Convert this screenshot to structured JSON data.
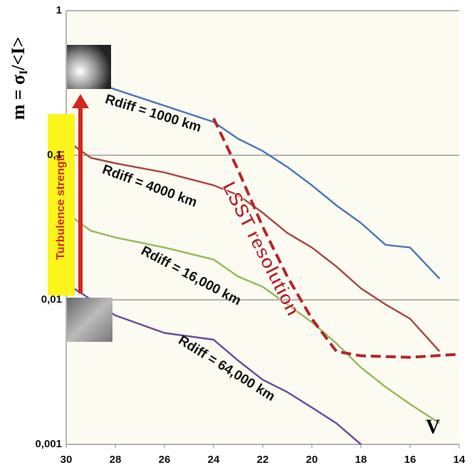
{
  "chart_data": {
    "type": "line",
    "ylabel_parts": [
      "m = σ",
      "I",
      "/<I>"
    ],
    "xlabel": "V",
    "xlim": [
      30,
      14
    ],
    "xticks": [
      30,
      28,
      26,
      24,
      22,
      20,
      18,
      16,
      14
    ],
    "ylim": [
      0.001,
      1
    ],
    "log_y": true,
    "yticks": [
      {
        "value": 0.001,
        "label": "0,001"
      },
      {
        "value": 0.01,
        "label": "0,01"
      },
      {
        "value": 0.1,
        "label": "0,1"
      },
      1
    ],
    "grid": true,
    "series": [
      {
        "name": "Rdiff = 1000 km",
        "color": "#4f78b8",
        "x": [
          28.6,
          28,
          26,
          24,
          23,
          22,
          21,
          20,
          19,
          18,
          17,
          16,
          14.8
        ],
        "values": [
          0.31,
          0.285,
          0.22,
          0.17,
          0.13,
          0.107,
          0.083,
          0.062,
          0.045,
          0.034,
          0.024,
          0.023,
          0.014
        ]
      },
      {
        "name": "Rdiff = 4000 km",
        "color": "#a84a45",
        "x": [
          30,
          29,
          28,
          26,
          24,
          23,
          22,
          21,
          20,
          19,
          18,
          17,
          16,
          14.8
        ],
        "values": [
          0.127,
          0.096,
          0.088,
          0.076,
          0.062,
          0.053,
          0.04,
          0.029,
          0.023,
          0.017,
          0.012,
          0.0093,
          0.0074,
          0.0044
        ]
      },
      {
        "name": "Rdiff = 16,000 km",
        "color": "#97bb5a",
        "x": [
          30,
          29,
          28,
          26,
          24,
          23,
          22,
          21,
          20,
          19,
          18,
          17,
          16,
          14.8
        ],
        "values": [
          0.04,
          0.03,
          0.027,
          0.023,
          0.019,
          0.0145,
          0.0123,
          0.0093,
          0.007,
          0.005,
          0.0034,
          0.0025,
          0.0019,
          0.0014
        ]
      },
      {
        "name": "Rdiff = 64,000 km",
        "color": "#6a4d9c",
        "x": [
          30,
          28,
          26,
          24,
          23,
          22,
          21,
          20,
          19,
          18
        ],
        "values": [
          0.013,
          0.0078,
          0.0059,
          0.0053,
          0.0038,
          0.0028,
          0.0023,
          0.0018,
          0.0014,
          0.001
        ]
      },
      {
        "name": "LSST resolution",
        "color": "#b4262a",
        "dashed": true,
        "x": [
          24,
          23,
          22,
          21,
          20,
          19,
          18,
          16,
          14
        ],
        "values": [
          0.18,
          0.079,
          0.032,
          0.0145,
          0.0074,
          0.0044,
          0.0041,
          0.004,
          0.0042
        ]
      }
    ],
    "annotation": "Turbulence strength"
  }
}
